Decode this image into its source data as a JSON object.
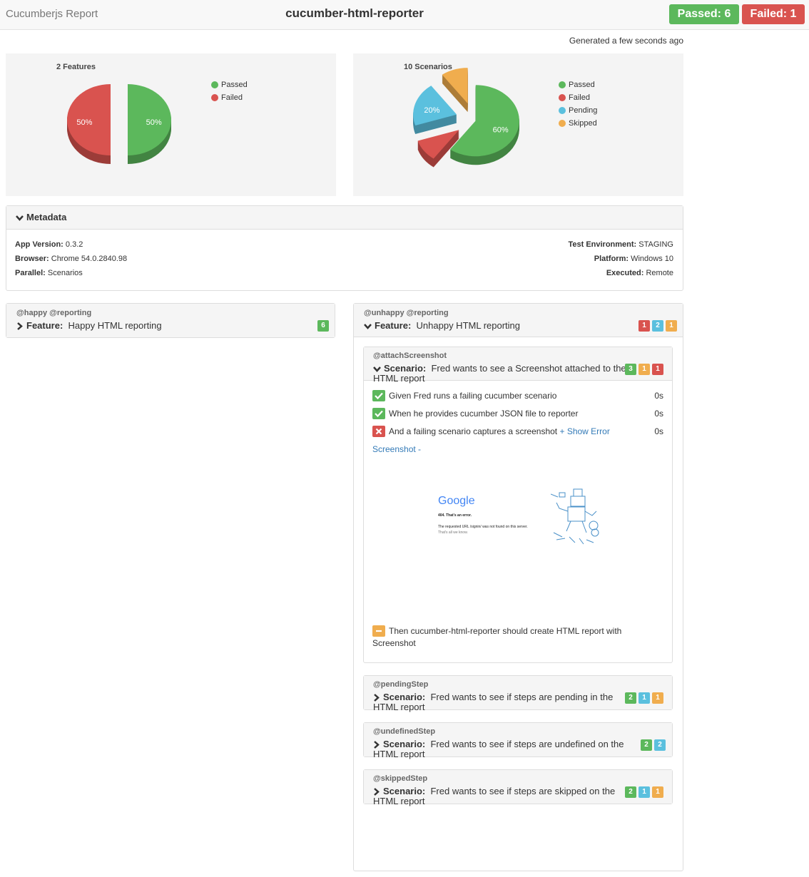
{
  "header": {
    "brand": "Cucumberjs Report",
    "title": "cucumber-html-reporter",
    "passed": "Passed: 6",
    "failed": "Failed: 1",
    "generated": "Generated a few seconds ago"
  },
  "chart_data": [
    {
      "type": "pie",
      "title": "2 Features",
      "categories": [
        "Passed",
        "Failed"
      ],
      "values": [
        50,
        50
      ],
      "value_labels": [
        "50%",
        "50%"
      ],
      "colors": [
        "#5cb85c",
        "#d9534f"
      ]
    },
    {
      "type": "pie",
      "title": "10 Scenarios",
      "categories": [
        "Passed",
        "Failed",
        "Pending",
        "Skipped"
      ],
      "values": [
        60,
        10,
        20,
        10
      ],
      "value_labels": [
        "60%",
        null,
        "20%",
        null
      ],
      "colors": [
        "#5cb85c",
        "#d9534f",
        "#5bc0de",
        "#f0ad4e"
      ]
    }
  ],
  "metadata": {
    "title": "Metadata",
    "left": [
      {
        "label": "App Version:",
        "value": "0.3.2"
      },
      {
        "label": "Browser:",
        "value": "Chrome 54.0.2840.98"
      },
      {
        "label": "Parallel:",
        "value": "Scenarios"
      }
    ],
    "right": [
      {
        "label": "Test Environment:",
        "value": "STAGING"
      },
      {
        "label": "Platform:",
        "value": "Windows 10"
      },
      {
        "label": "Executed:",
        "value": "Remote"
      }
    ]
  },
  "features": [
    {
      "tags": "@happy @reporting",
      "keyword": "Feature:",
      "name": "Happy HTML reporting",
      "badges": [
        {
          "count": 6,
          "status": "passed"
        }
      ]
    },
    {
      "tags": "@unhappy @reporting",
      "keyword": "Feature:",
      "name": "Unhappy HTML reporting",
      "badges": [
        {
          "count": 1,
          "status": "failed"
        },
        {
          "count": 2,
          "status": "pending"
        },
        {
          "count": 1,
          "status": "skipped"
        }
      ],
      "scenarios": [
        {
          "tags": "@attachScreenshot",
          "keyword": "Scenario:",
          "name": "Fred wants to see a Screenshot attached to the HTML report",
          "badges": [
            {
              "count": 3,
              "status": "passed"
            },
            {
              "count": 1,
              "status": "skipped"
            },
            {
              "count": 1,
              "status": "failed"
            }
          ],
          "steps": [
            {
              "text": "Given Fred runs a failing cucumber scenario",
              "duration": "0s",
              "status": "passed"
            },
            {
              "text": "When he provides cucumber JSON file to reporter",
              "duration": "0s",
              "status": "passed"
            },
            {
              "text": "And a failing scenario captures a screenshot",
              "link": "+ Show Error",
              "duration": "0s",
              "status": "failed"
            },
            {
              "text": "Then cucumber-html-reporter should create HTML report with Screenshot",
              "status": "skipped"
            }
          ],
          "screenshot": {
            "link": "Screenshot -",
            "logo": "Google",
            "error": "404. That's an error.",
            "message": "The requested URL /signin/ was not found on this server.",
            "note": "That's all we know."
          }
        },
        {
          "tags": "@pendingStep",
          "keyword": "Scenario:",
          "name": "Fred wants to see if steps are pending in the HTML report",
          "badges": [
            {
              "count": 2,
              "status": "passed"
            },
            {
              "count": 1,
              "status": "pending"
            },
            {
              "count": 1,
              "status": "skipped"
            }
          ]
        },
        {
          "tags": "@undefinedStep",
          "keyword": "Scenario:",
          "name": "Fred wants to see if steps are undefined on the HTML report",
          "badges": [
            {
              "count": 2,
              "status": "passed"
            },
            {
              "count": 2,
              "status": "pending"
            }
          ]
        },
        {
          "tags": "@skippedStep",
          "keyword": "Scenario:",
          "name": "Fred wants to see if steps are skipped on the HTML report",
          "badges": [
            {
              "count": 2,
              "status": "passed"
            },
            {
              "count": 1,
              "status": "pending"
            },
            {
              "count": 1,
              "status": "skipped"
            }
          ]
        }
      ]
    }
  ]
}
